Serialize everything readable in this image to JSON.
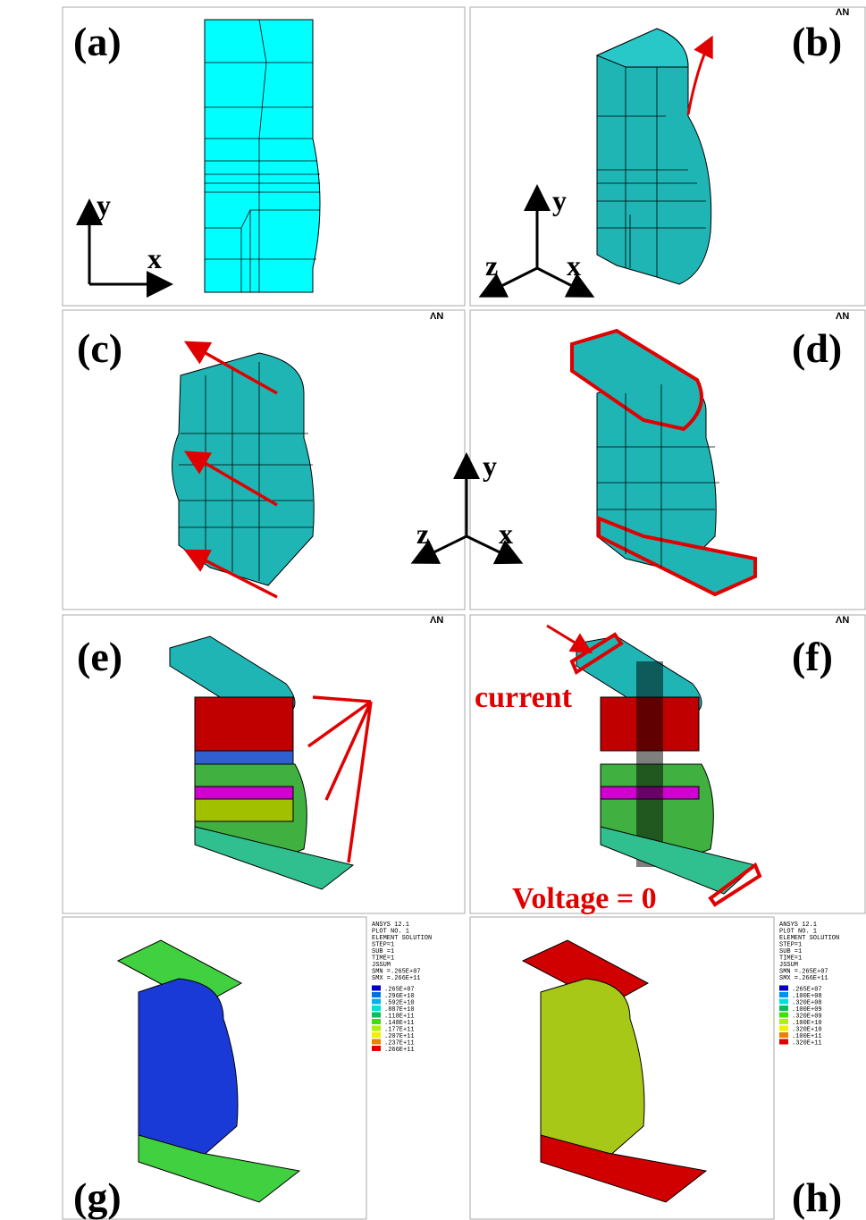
{
  "panels": [
    {
      "label": "(a)",
      "axes": [
        "y",
        "x"
      ]
    },
    {
      "label": "(b)",
      "axes": [
        "y",
        "z",
        "x"
      ]
    },
    {
      "label": "(c)"
    },
    {
      "label": "(d)"
    },
    {
      "label": "(e)"
    },
    {
      "label": "(f)"
    },
    {
      "label": "(g)"
    },
    {
      "label": "(h)"
    }
  ],
  "shared_axes": [
    "y",
    "z",
    "x"
  ],
  "annotations": {
    "current": "current",
    "voltage": "Voltage = 0"
  },
  "logo": "ΛN",
  "legends": [
    {
      "header": [
        "ANSYS 12.1",
        "PLOT NO.   1",
        "ELEMENT SOLUTION",
        "STEP=1",
        "SUB =1",
        "TIME=1",
        "JSSUM",
        "SMN =.265E+07",
        "SMX =.266E+11"
      ],
      "entries": [
        {
          "label": ".265E+07",
          "color": "#0000c8"
        },
        {
          "label": ".296E+10",
          "color": "#0070e0"
        },
        {
          "label": ".592E+10",
          "color": "#00b0f0"
        },
        {
          "label": ".887E+10",
          "color": "#00e0d0"
        },
        {
          "label": ".118E+11",
          "color": "#00c060"
        },
        {
          "label": ".148E+11",
          "color": "#40e000"
        },
        {
          "label": ".177E+11",
          "color": "#b0f000"
        },
        {
          "label": ".207E+11",
          "color": "#f0f000"
        },
        {
          "label": ".237E+11",
          "color": "#f08000"
        },
        {
          "label": ".266E+11",
          "color": "#e00000"
        }
      ]
    },
    {
      "header": [
        "ANSYS 12.1",
        "PLOT NO.   1",
        "ELEMENT SOLUTION",
        "STEP=1",
        "SUB =1",
        "TIME=1",
        "JSSUM",
        "SMN =.265E+07",
        "SMX =.266E+11"
      ],
      "entries": [
        {
          "label": ".265E+07",
          "color": "#0000c8"
        },
        {
          "label": ".100E+08",
          "color": "#0090f0"
        },
        {
          "label": ".320E+08",
          "color": "#00e0e0"
        },
        {
          "label": ".100E+09",
          "color": "#00c060"
        },
        {
          "label": ".320E+09",
          "color": "#40e000"
        },
        {
          "label": ".100E+10",
          "color": "#b0f000"
        },
        {
          "label": ".320E+10",
          "color": "#f0f000"
        },
        {
          "label": ".100E+11",
          "color": "#f08000"
        },
        {
          "label": ".320E+11",
          "color": "#e00000"
        }
      ]
    }
  ]
}
